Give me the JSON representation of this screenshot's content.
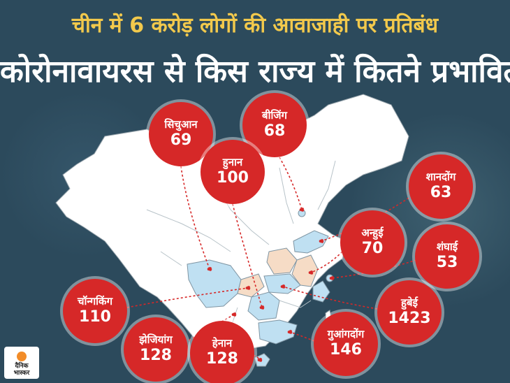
{
  "headline": {
    "subtitle": "चीन में 6 करोड़ लोगों की आवाजाही पर प्रतिबंध",
    "title": "कोरोनावायरस से किस राज्य में कितने प्रभावित?"
  },
  "colors": {
    "background": "#2c4a5c",
    "subtitle": "#f2c94c",
    "badge": "#d62828",
    "map_land": "#ffffff",
    "province_blue": "#bfe0f2",
    "province_peach": "#f6dcc6"
  },
  "provinces": [
    {
      "name": "सिचुआन",
      "value": 69
    },
    {
      "name": "बीजिंग",
      "value": 68
    },
    {
      "name": "हुनान",
      "value": 100
    },
    {
      "name": "शानदोंग",
      "value": 63
    },
    {
      "name": "अन्हुई",
      "value": 70
    },
    {
      "name": "शंघाई",
      "value": 53
    },
    {
      "name": "चॉन्गकिंग",
      "value": 110
    },
    {
      "name": "हुबेई",
      "value": 1423
    },
    {
      "name": "झेजियांग",
      "value": 128
    },
    {
      "name": "हेनान",
      "value": 128
    },
    {
      "name": "गुआंगदोंग",
      "value": 146
    }
  ],
  "logo": {
    "line1": "दैनिक",
    "line2": "भास्कर"
  }
}
